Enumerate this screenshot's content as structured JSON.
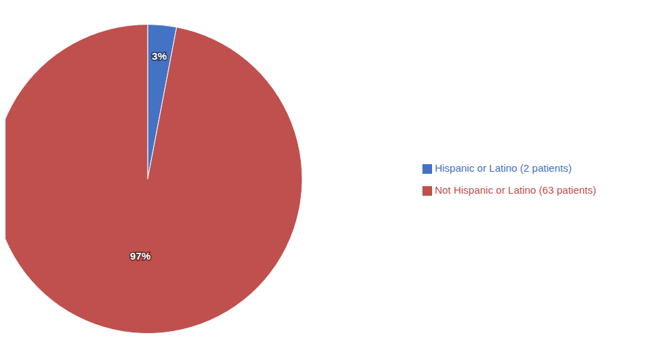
{
  "chart_data": {
    "type": "pie",
    "categories": [
      "Hispanic or Latino (2 patients)",
      "Not Hispanic or Latino (63 patients)"
    ],
    "values": [
      3,
      97
    ],
    "value_labels": [
      "3%",
      "97%"
    ],
    "colors": [
      "#4472C4",
      "#C0504D"
    ],
    "data_labels": true,
    "legend": "right"
  }
}
